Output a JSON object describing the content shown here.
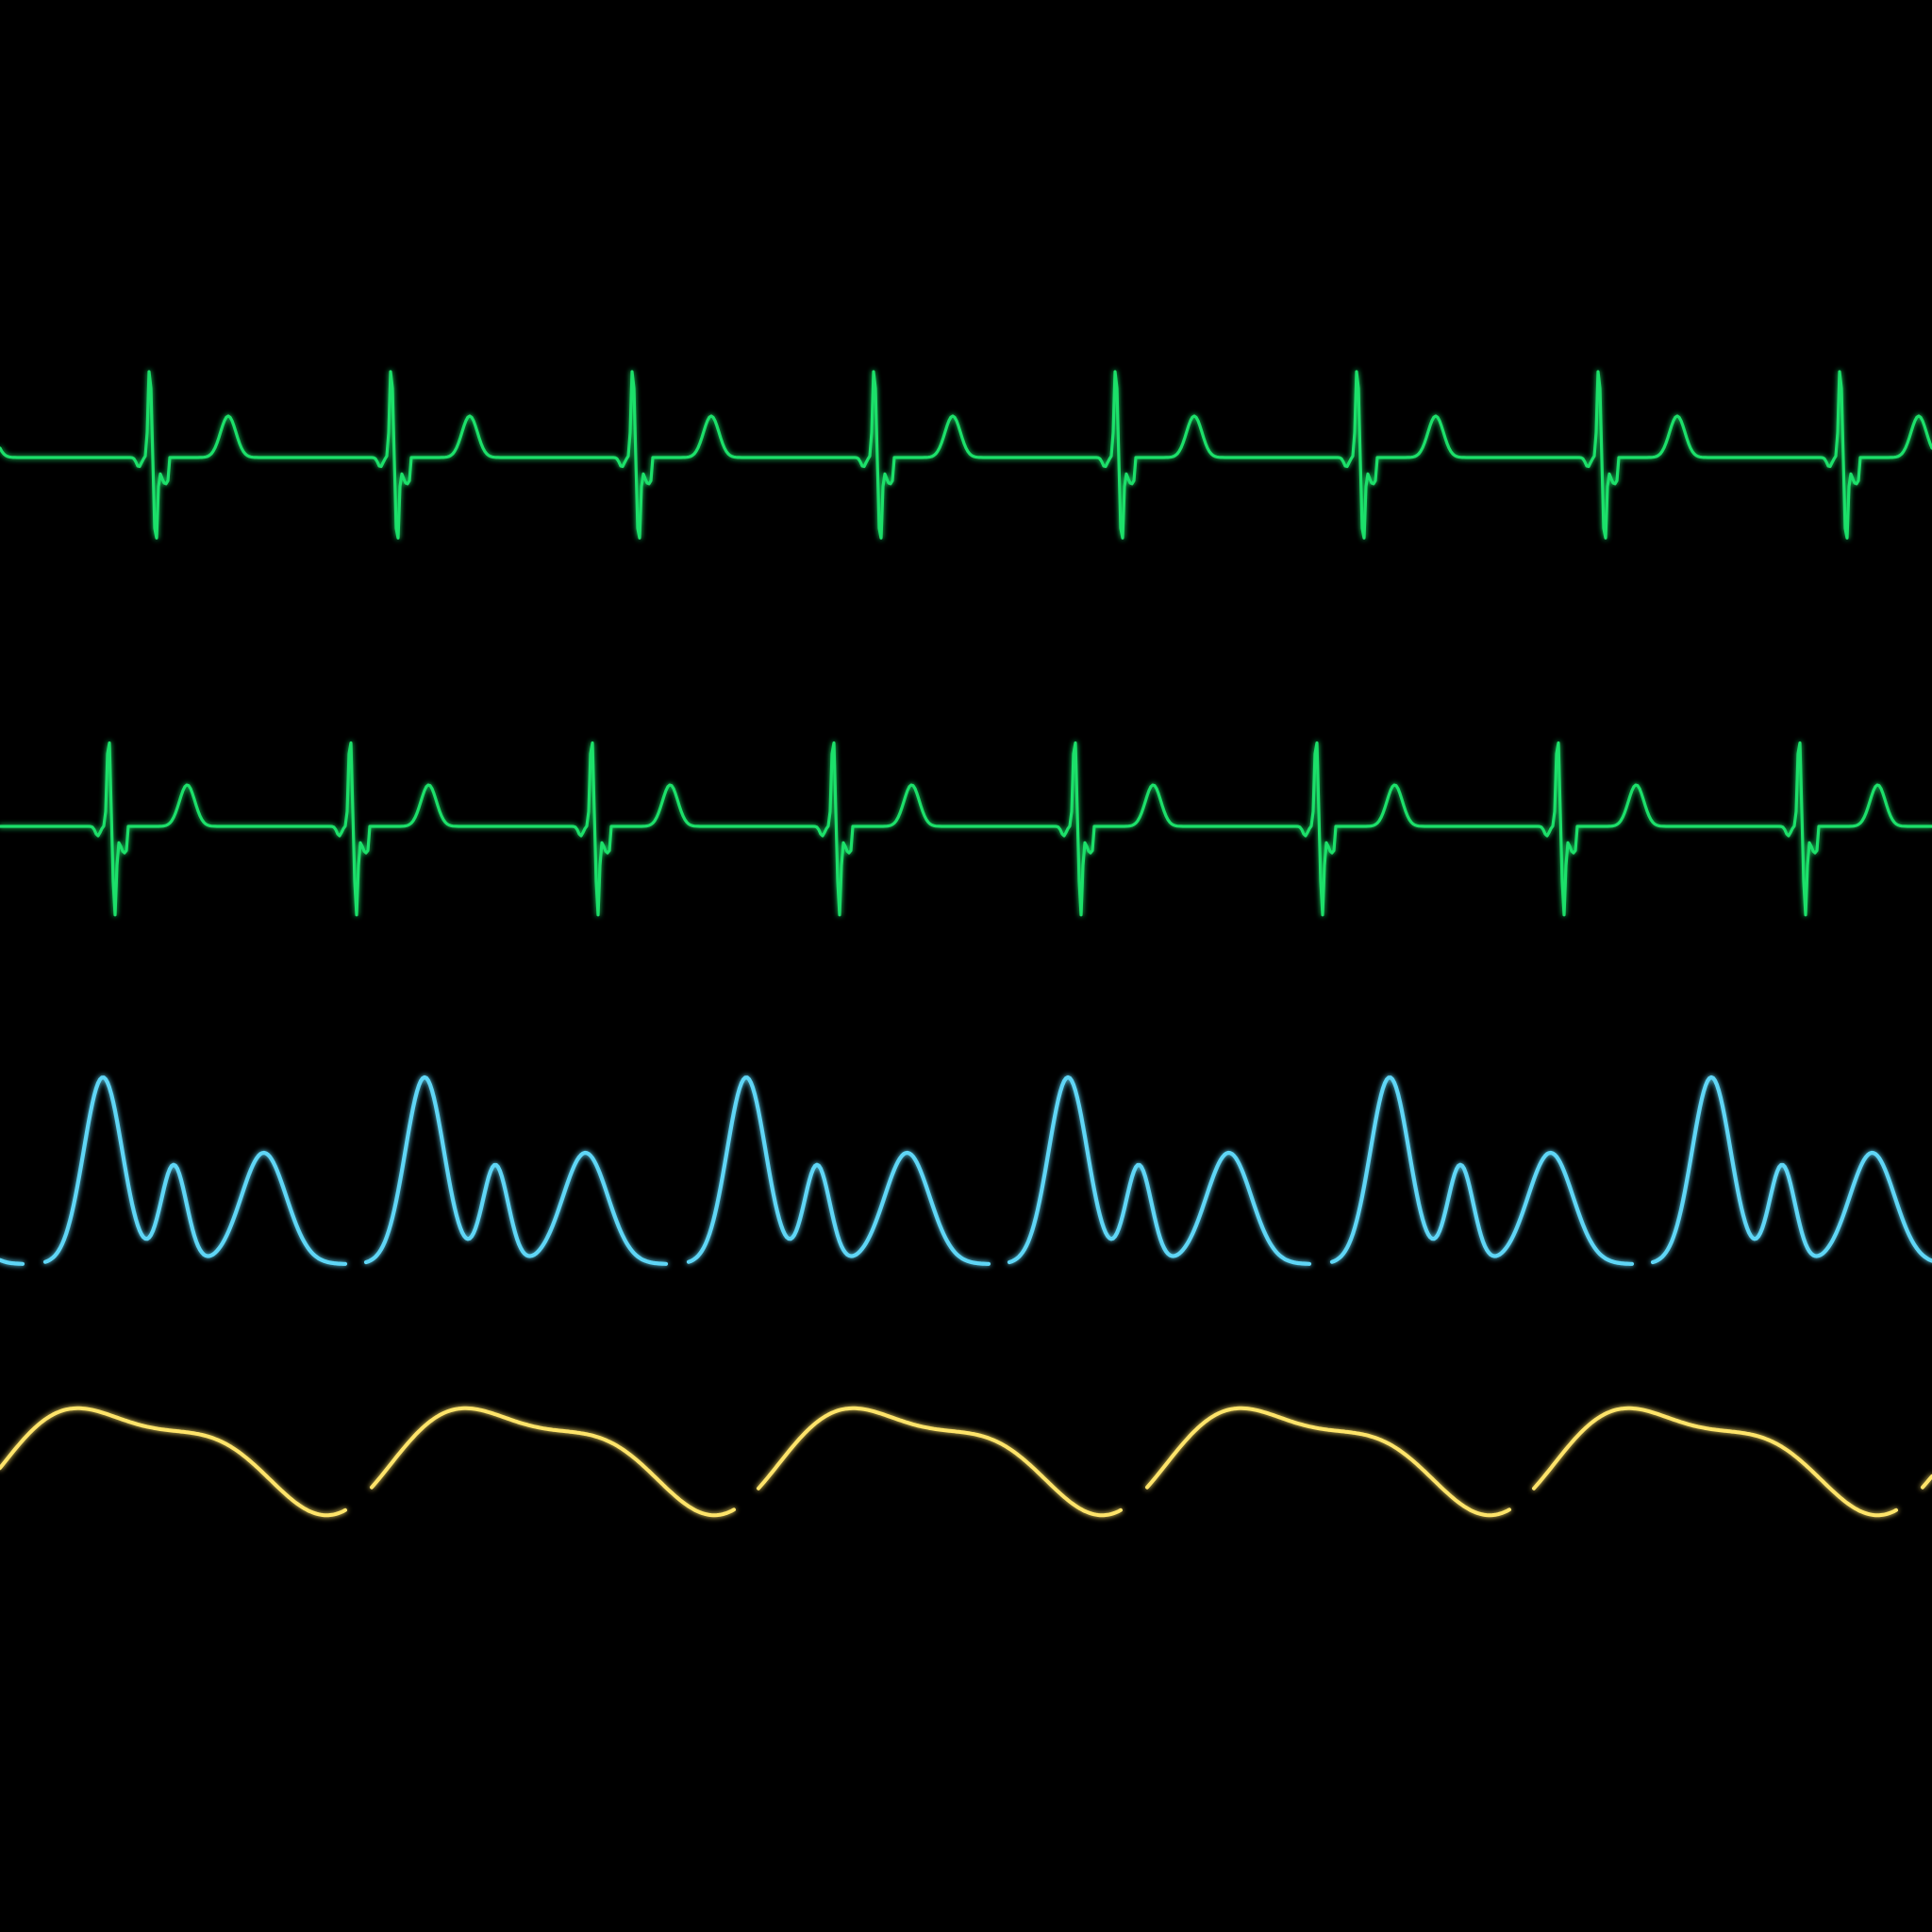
{
  "monitor": {
    "background": "#000000"
  },
  "waveforms": [
    {
      "id": "ecg-lead-1",
      "kind": "ecg",
      "color": "#1fe06a",
      "beats_visible": 8,
      "gapped": false
    },
    {
      "id": "ecg-lead-2",
      "kind": "ecg",
      "color": "#1fe06a",
      "beats_visible": 8,
      "gapped": false
    },
    {
      "id": "arterial-pressure",
      "kind": "pleth",
      "color": "#5fd6f6",
      "beats_visible": 6,
      "gapped": true
    },
    {
      "id": "respiration",
      "kind": "resp",
      "color": "#ffe46a",
      "beats_visible": 5,
      "gapped": true
    }
  ]
}
